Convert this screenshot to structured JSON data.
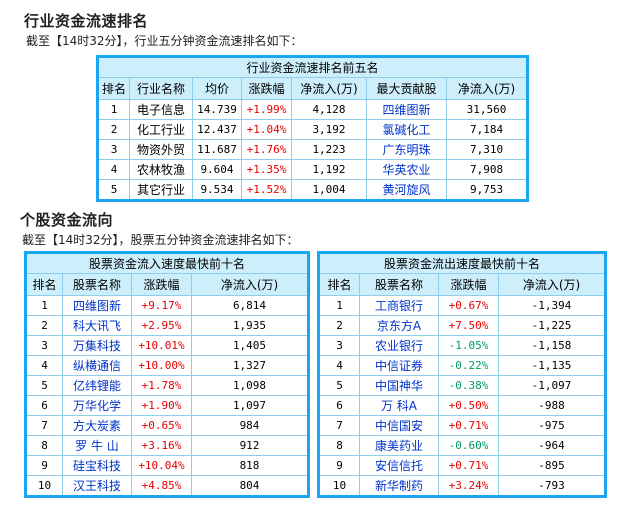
{
  "industry": {
    "title": "行业资金流速排名",
    "subtitle": "截至【14时32分】，行业五分钟资金流速排名如下：",
    "table": {
      "caption": "行业资金流速排名前五名",
      "headers": [
        "排名",
        "行业名称",
        "均价",
        "涨跌幅",
        "净流入(万)",
        "最大贡献股",
        "净流入(万)"
      ],
      "rows": [
        {
          "rank": "1",
          "name": "电子信息",
          "avg_price": "14.739",
          "change": "+1.99%",
          "net_inflow": "4,128",
          "top_stock": "四维图新",
          "top_inflow": "31,560"
        },
        {
          "rank": "2",
          "name": "化工行业",
          "avg_price": "12.437",
          "change": "+1.04%",
          "net_inflow": "3,192",
          "top_stock": "氯碱化工",
          "top_inflow": "7,184"
        },
        {
          "rank": "3",
          "name": "物资外贸",
          "avg_price": "11.687",
          "change": "+1.76%",
          "net_inflow": "1,223",
          "top_stock": "广东明珠",
          "top_inflow": "7,310"
        },
        {
          "rank": "4",
          "name": "农林牧渔",
          "avg_price": "9.604",
          "change": "+1.35%",
          "net_inflow": "1,192",
          "top_stock": "华英农业",
          "top_inflow": "7,908"
        },
        {
          "rank": "5",
          "name": "其它行业",
          "avg_price": "9.534",
          "change": "+1.52%",
          "net_inflow": "1,004",
          "top_stock": "黄河旋风",
          "top_inflow": "9,753"
        }
      ]
    }
  },
  "stocks": {
    "title": "个股资金流向",
    "subtitle": "截至【14时32分】，股票五分钟资金流速排名如下：",
    "inflow_table": {
      "caption": "股票资金流入速度最快前十名",
      "headers": [
        "排名",
        "股票名称",
        "涨跌幅",
        "净流入(万)"
      ],
      "rows": [
        {
          "rank": "1",
          "name": "四维图新",
          "change": "+9.17%",
          "net_inflow": "6,814"
        },
        {
          "rank": "2",
          "name": "科大讯飞",
          "change": "+2.95%",
          "net_inflow": "1,935"
        },
        {
          "rank": "3",
          "name": "万集科技",
          "change": "+10.01%",
          "net_inflow": "1,405"
        },
        {
          "rank": "4",
          "name": "纵横通信",
          "change": "+10.00%",
          "net_inflow": "1,327"
        },
        {
          "rank": "5",
          "name": "亿纬锂能",
          "change": "+1.78%",
          "net_inflow": "1,098"
        },
        {
          "rank": "6",
          "name": "万华化学",
          "change": "+1.90%",
          "net_inflow": "1,097"
        },
        {
          "rank": "7",
          "name": "方大炭素",
          "change": "+0.65%",
          "net_inflow": "984"
        },
        {
          "rank": "8",
          "name": "罗 牛 山",
          "change": "+3.16%",
          "net_inflow": "912"
        },
        {
          "rank": "9",
          "name": "硅宝科技",
          "change": "+10.04%",
          "net_inflow": "818"
        },
        {
          "rank": "10",
          "name": "汉王科技",
          "change": "+4.85%",
          "net_inflow": "804"
        }
      ]
    },
    "outflow_table": {
      "caption": "股票资金流出速度最快前十名",
      "headers": [
        "排名",
        "股票名称",
        "涨跌幅",
        "净流入(万)"
      ],
      "rows": [
        {
          "rank": "1",
          "name": "工商银行",
          "change": "+0.67%",
          "net_inflow": "-1,394"
        },
        {
          "rank": "2",
          "name": "京东方A",
          "change": "+7.50%",
          "net_inflow": "-1,225"
        },
        {
          "rank": "3",
          "name": "农业银行",
          "change": "-1.05%",
          "net_inflow": "-1,158"
        },
        {
          "rank": "4",
          "name": "中信证券",
          "change": "-0.22%",
          "net_inflow": "-1,135"
        },
        {
          "rank": "5",
          "name": "中国神华",
          "change": "-0.38%",
          "net_inflow": "-1,097"
        },
        {
          "rank": "6",
          "name": "万 科A",
          "change": "+0.50%",
          "net_inflow": "-988"
        },
        {
          "rank": "7",
          "name": "中信国安",
          "change": "+0.71%",
          "net_inflow": "-975"
        },
        {
          "rank": "8",
          "name": "康美药业",
          "change": "-0.60%",
          "net_inflow": "-964"
        },
        {
          "rank": "9",
          "name": "安信信托",
          "change": "+0.71%",
          "net_inflow": "-895"
        },
        {
          "rank": "10",
          "name": "新华制药",
          "change": "+3.24%",
          "net_inflow": "-793"
        }
      ]
    }
  },
  "colors": {
    "outer_border": "#1aa6f0",
    "grid": "#8fcdec",
    "header_bg": "#cdeefb",
    "up": "#e60000",
    "down": "#009966",
    "link": "#0033cc"
  }
}
